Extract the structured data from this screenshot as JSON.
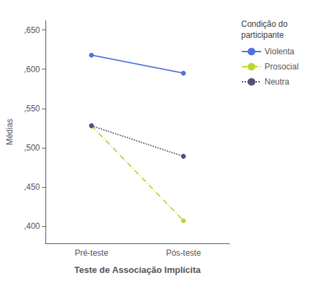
{
  "chart_data": {
    "type": "line",
    "categories": [
      "Pré-teste",
      "Pós-teste"
    ],
    "series": [
      {
        "name": "Violenta",
        "values": [
          0.618,
          0.595
        ],
        "line_style": "solid",
        "marker": "circle"
      },
      {
        "name": "Prosocial",
        "values": [
          0.528,
          0.407
        ],
        "line_style": "dashdot",
        "marker": "circle"
      },
      {
        "name": "Neutra",
        "values": [
          0.528,
          0.489
        ],
        "line_style": "dotted",
        "marker": "circle"
      }
    ],
    "xlabel": "Teste de Associação Implícita",
    "ylabel": "Médias",
    "ylim": [
      0.378,
      0.662
    ],
    "yticks": [
      {
        "value": 0.4,
        "label": ",400"
      },
      {
        "value": 0.45,
        "label": ",450"
      },
      {
        "value": 0.5,
        "label": ",500"
      },
      {
        "value": 0.55,
        "label": ",550"
      },
      {
        "value": 0.6,
        "label": ",600"
      },
      {
        "value": 0.65,
        "label": ",650"
      }
    ],
    "legend_title": "Condição do\nparticipante",
    "grid": false,
    "legend": "right"
  }
}
